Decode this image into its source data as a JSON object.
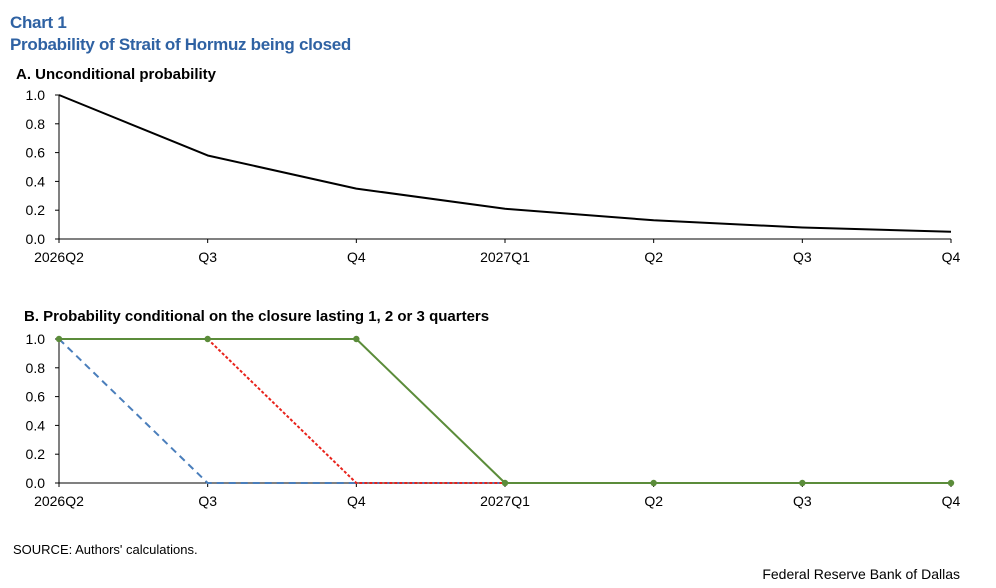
{
  "header": {
    "chart_label": "Chart 1",
    "title": "Probability of Strait of Hormuz being closed"
  },
  "footer": {
    "source": "SOURCE: Authors' calculations.",
    "credit": "Federal Reserve Bank of Dallas"
  },
  "chart_data": [
    {
      "type": "line",
      "title": "A. Unconditional probability",
      "categories": [
        "2026Q2",
        "Q3",
        "Q4",
        "2027Q1",
        "Q2",
        "Q3",
        "Q4"
      ],
      "yticks": [
        "0.0",
        "0.2",
        "0.4",
        "0.6",
        "0.8",
        "1.0"
      ],
      "ylim": [
        0,
        1
      ],
      "grid": false,
      "series": [
        {
          "values": [
            1.0,
            0.58,
            0.35,
            0.21,
            0.13,
            0.08,
            0.05
          ],
          "color": "#000000",
          "dash": "solid",
          "markers": false
        }
      ]
    },
    {
      "type": "line",
      "title": "B. Probability conditional on the closure lasting 1, 2 or 3 quarters",
      "categories": [
        "2026Q2",
        "Q3",
        "Q4",
        "2027Q1",
        "Q2",
        "Q3",
        "Q4"
      ],
      "yticks": [
        "0.0",
        "0.2",
        "0.4",
        "0.6",
        "0.8",
        "1.0"
      ],
      "ylim": [
        0,
        1
      ],
      "grid": false,
      "series": [
        {
          "values": [
            1.0,
            0.0,
            0.0,
            0.0,
            0.0,
            0.0,
            0.0
          ],
          "color": "#4a7ebb",
          "dash": "dashed",
          "markers": false
        },
        {
          "values": [
            null,
            1.0,
            0.0,
            0.0,
            0.0,
            0.0,
            0.0
          ],
          "color": "#e8231c",
          "dash": "dotted",
          "markers": false
        },
        {
          "values": [
            1.0,
            1.0,
            1.0,
            0.0,
            0.0,
            0.0,
            0.0
          ],
          "color": "#5b8c3a",
          "dash": "solid",
          "markers": true
        }
      ]
    }
  ]
}
